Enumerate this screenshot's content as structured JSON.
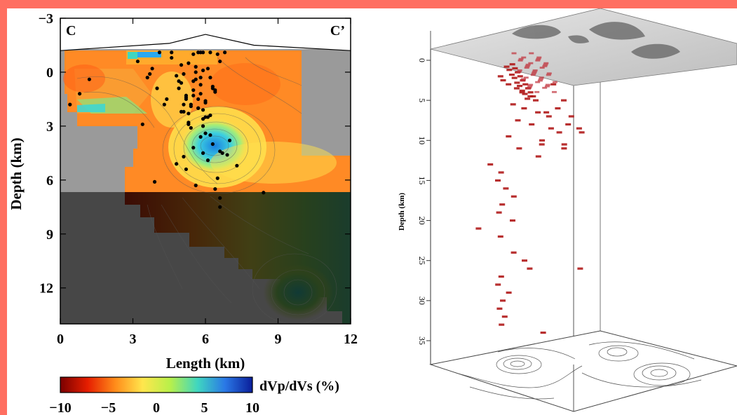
{
  "chart_data": [
    {
      "type": "heatmap",
      "section_labels": {
        "start": "C",
        "end": "C’"
      },
      "xlabel": "Length (km)",
      "ylabel": "Depth (km)",
      "xlim": [
        0,
        12
      ],
      "ylim": [
        -3,
        14
      ],
      "y_inverted": true,
      "xticks": [
        "0",
        "3",
        "6",
        "9",
        "12"
      ],
      "yticks": [
        "−3",
        "0",
        "3",
        "6",
        "9",
        "12"
      ],
      "xtick_values": [
        0,
        3,
        6,
        9,
        12
      ],
      "ytick_values": [
        -3,
        0,
        3,
        6,
        9,
        12
      ],
      "colorbar": {
        "label": "dVp/dVs (%)",
        "min": -10,
        "max": 10,
        "ticks": [
          "−10",
          "−5",
          "0",
          "5",
          "10"
        ],
        "tick_values": [
          -10,
          -5,
          0,
          5,
          10
        ],
        "colors": [
          "#7a0000",
          "#e61e00",
          "#ff8c1a",
          "#ffe64d",
          "#b8f04a",
          "#3fd6c0",
          "#2a78e6",
          "#0a1e9a"
        ]
      },
      "resolution_boundary_depth": 6.8,
      "topography_profile": {
        "x": [
          0,
          4.5,
          6.0,
          8.0,
          12.0
        ],
        "elev": [
          -1.2,
          -1.6,
          -2.1,
          -1.5,
          -1.2
        ]
      },
      "earthquakes": {
        "x": [
          5.3,
          5.6,
          5.9,
          5.1,
          6.2,
          5.5,
          5.8,
          4.9,
          6.4,
          5.2,
          5.7,
          6.0,
          5.4,
          5.9,
          5.3,
          6.1,
          4.8,
          5.6,
          5.0,
          6.3,
          5.5,
          5.8,
          5.2,
          6.0,
          5.4,
          5.7,
          5.1,
          6.2,
          5.9,
          5.3,
          4.6,
          6.6,
          5.5,
          5.8,
          5.0,
          6.1,
          5.6,
          5.3,
          5.9,
          4.9,
          6.4,
          5.2,
          5.7,
          6.0,
          5.4,
          5.8,
          5.1,
          6.3,
          5.5,
          5.0,
          3.2,
          3.6,
          4.0,
          4.3,
          3.8,
          3.4,
          4.1,
          4.6,
          0.4,
          0.8,
          1.2,
          3.7,
          4.4,
          5.9,
          6.2,
          5.7,
          6.5,
          6.8,
          6.0,
          5.8,
          7.0,
          6.3,
          5.5,
          6.6,
          6.9,
          6.2,
          5.9,
          6.7,
          7.3,
          8.4,
          6.5,
          5.2,
          4.8,
          3.9,
          5.6,
          6.4,
          6.6,
          6.6,
          5.1,
          6.1
        ],
        "depth": [
          -0.5,
          -0.3,
          -0.1,
          0.1,
          0.3,
          0.5,
          0.7,
          0.9,
          1.1,
          1.3,
          1.5,
          1.7,
          1.9,
          2.1,
          2.3,
          2.5,
          0.2,
          0.4,
          0.6,
          0.8,
          1.0,
          1.2,
          1.4,
          1.6,
          1.8,
          2.0,
          2.2,
          2.4,
          2.6,
          2.8,
          -0.8,
          -0.6,
          -1.0,
          -1.1,
          -0.4,
          -0.2,
          0.0,
          2.9,
          3.0,
          0.5,
          1.0,
          1.5,
          2.0,
          2.5,
          3.1,
          0.3,
          1.8,
          0.9,
          1.3,
          2.2,
          -0.6,
          0.3,
          0.9,
          1.8,
          -0.2,
          2.9,
          -1.1,
          -1.1,
          1.8,
          1.2,
          0.4,
          0.1,
          1.5,
          -1.1,
          -1.1,
          -1.1,
          -1.0,
          -1.1,
          3.4,
          3.6,
          3.8,
          4.0,
          4.2,
          4.4,
          4.6,
          3.5,
          4.5,
          4.5,
          5.2,
          6.7,
          5.9,
          5.4,
          5.1,
          6.1,
          6.3,
          6.5,
          7.0,
          7.5,
          4.7,
          4.9
        ]
      }
    },
    {
      "type": "scatter",
      "ylabel": "Depth (km)",
      "zlim": [
        0,
        38
      ],
      "zticks": [
        "0",
        "5",
        "10",
        "15",
        "20",
        "25",
        "30",
        "35"
      ],
      "ztick_values": [
        0,
        5,
        10,
        15,
        20,
        25,
        30,
        35
      ],
      "marker_color": "#b01818",
      "earthquakes": {
        "depth": [
          0.5,
          1.0,
          1.5,
          2.0,
          2.5,
          3.0,
          3.5,
          4.0,
          4.5,
          0.8,
          1.2,
          1.8,
          2.2,
          2.8,
          3.2,
          3.8,
          4.2,
          4.8,
          2.0,
          2.5,
          3.0,
          3.5,
          4.0,
          4.5,
          5.0,
          5.5,
          6.0,
          6.5,
          7.0,
          7.5,
          8.0,
          8.5,
          9.0,
          9.5,
          10.0,
          10.5,
          11.0,
          12.0,
          13.0,
          14.0,
          15.0,
          16.0,
          17.0,
          18.0,
          19.0,
          20.0,
          21.0,
          22.0,
          24.0,
          25.0,
          26.0,
          27.0,
          28.0,
          29.0,
          30.0,
          31.0,
          32.0,
          33.0,
          26.0,
          34.0,
          6.0,
          7.0,
          8.5,
          9.0,
          11.0,
          5.0,
          3.0,
          6.5,
          8.0,
          10.5
        ],
        "offset": [
          -0.6,
          -0.5,
          -0.4,
          -0.3,
          -0.2,
          -0.1,
          0.0,
          0.1,
          0.2,
          -0.8,
          -0.7,
          -0.6,
          -0.5,
          -0.4,
          -0.3,
          -0.2,
          -0.1,
          0.0,
          -1.0,
          -0.9,
          -0.7,
          -0.4,
          -0.2,
          0.1,
          0.3,
          -0.5,
          -0.1,
          0.4,
          0.8,
          -0.3,
          0.2,
          0.9,
          1.2,
          -0.6,
          0.6,
          1.4,
          -0.2,
          0.5,
          -1.2,
          -0.8,
          -0.9,
          -0.6,
          -0.3,
          -0.7,
          -0.8,
          -0.3,
          -1.5,
          -0.7,
          -0.2,
          0.2,
          0.4,
          -0.6,
          -0.7,
          -0.3,
          -0.5,
          -0.6,
          -0.4,
          -0.5,
          2.2,
          1.0,
          1.1,
          1.6,
          1.9,
          2.0,
          1.4,
          1.3,
          0.9,
          0.7,
          1.5,
          0.6
        ]
      }
    }
  ]
}
